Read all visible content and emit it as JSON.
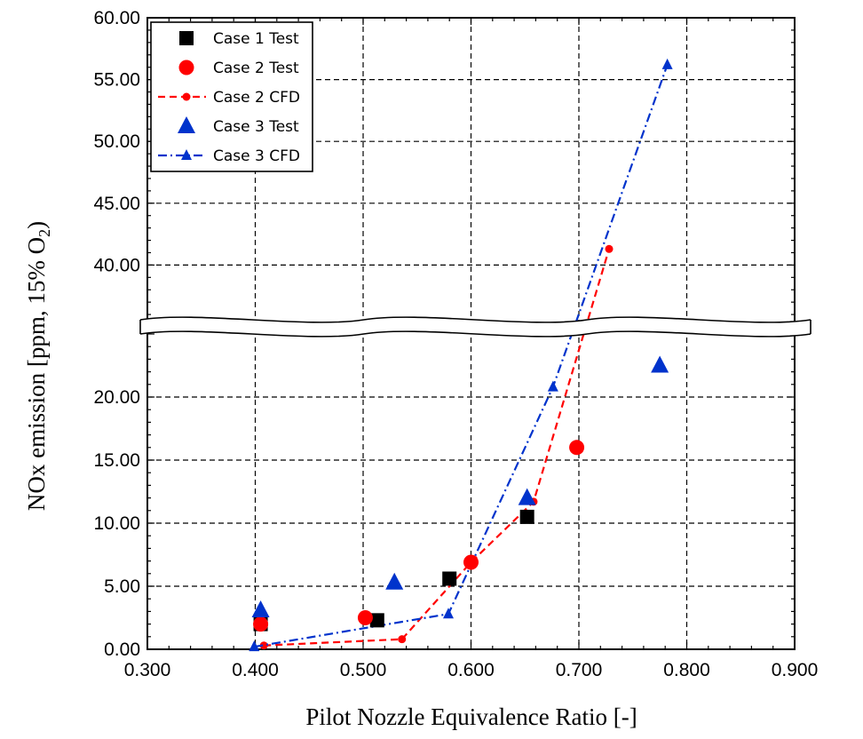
{
  "chart_data": {
    "type": "scatter",
    "xlabel": "Pilot Nozzle Equivalence Ratio [-]",
    "ylabel_main": "NOx emission [ppm, 15% O",
    "ylabel_sub": "2",
    "ylabel_close": ")",
    "xlim": [
      0.3,
      0.9
    ],
    "x_ticks": [
      "0.300",
      "0.400",
      "0.500",
      "0.600",
      "0.700",
      "0.800",
      "0.900"
    ],
    "y_axis_broken": true,
    "y_lower_range": [
      0,
      25
    ],
    "y_upper_range": [
      35,
      60
    ],
    "y_ticks_lower": [
      "0.00",
      "5.00",
      "10.00",
      "15.00",
      "20.00"
    ],
    "y_ticks_upper": [
      "40.00",
      "45.00",
      "50.00",
      "55.00",
      "60.00"
    ],
    "grid": true,
    "legend_position": "top-left",
    "series": [
      {
        "name": "Case 1 Test",
        "color": "#000000",
        "marker": "square",
        "line": "none",
        "x": [
          0.405,
          0.513,
          0.58,
          0.652
        ],
        "y": [
          2.0,
          2.3,
          5.6,
          10.5
        ]
      },
      {
        "name": "Case 2 Test",
        "color": "#ff0000",
        "marker": "circle",
        "line": "none",
        "x": [
          0.405,
          0.502,
          0.6,
          0.698
        ],
        "y": [
          2.0,
          2.5,
          6.9,
          16.0
        ]
      },
      {
        "name": "Case 2 CFD",
        "color": "#ff0000",
        "marker": "small-circle",
        "line": "dash",
        "x": [
          0.408,
          0.536,
          0.6,
          0.658,
          0.728
        ],
        "y": [
          0.3,
          0.8,
          6.9,
          11.7,
          41.3
        ]
      },
      {
        "name": "Case 3 Test",
        "color": "#0033cc",
        "marker": "triangle",
        "line": "none",
        "x": [
          0.405,
          0.529,
          0.652,
          0.775
        ],
        "y": [
          3.1,
          5.3,
          12.0,
          22.5
        ]
      },
      {
        "name": "Case 3 CFD",
        "color": "#0033cc",
        "marker": "small-triangle",
        "line": "dashdot",
        "x": [
          0.399,
          0.579,
          0.676,
          0.782
        ],
        "y": [
          0.2,
          2.8,
          20.8,
          56.2
        ]
      }
    ]
  }
}
